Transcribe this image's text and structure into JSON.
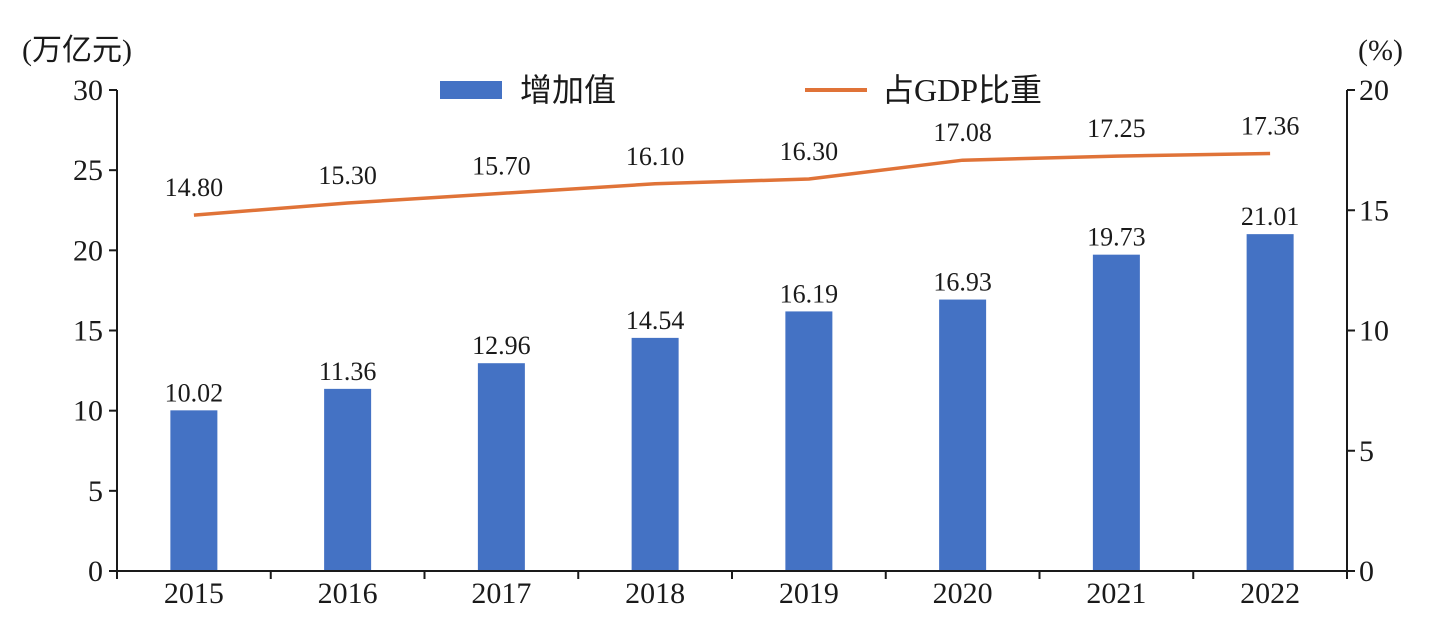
{
  "chart_data": {
    "type": "bar+line",
    "categories": [
      "2015",
      "2016",
      "2017",
      "2018",
      "2019",
      "2020",
      "2021",
      "2022"
    ],
    "series": [
      {
        "name": "增加值",
        "type": "bar",
        "axis": "left",
        "color": "#4472C4",
        "values": [
          10.02,
          11.36,
          12.96,
          14.54,
          16.19,
          16.93,
          19.73,
          21.01
        ],
        "labels": [
          "10.02",
          "11.36",
          "12.96",
          "14.54",
          "16.19",
          "16.93",
          "19.73",
          "21.01"
        ]
      },
      {
        "name": "占GDP比重",
        "type": "line",
        "axis": "right",
        "color": "#E07338",
        "values": [
          14.8,
          15.3,
          15.7,
          16.1,
          16.3,
          17.08,
          17.25,
          17.36
        ],
        "labels": [
          "14.80",
          "15.30",
          "15.70",
          "16.10",
          "16.30",
          "17.08",
          "17.25",
          "17.36"
        ]
      }
    ],
    "left_axis": {
      "unit": "(万亿元)",
      "ylim": [
        0,
        30
      ],
      "ticks": [
        "0",
        "5",
        "10",
        "15",
        "20",
        "25",
        "30"
      ]
    },
    "right_axis": {
      "unit": "(%)",
      "ylim": [
        0,
        20
      ],
      "ticks": [
        "0",
        "5",
        "10",
        "15",
        "20"
      ]
    },
    "legend": {
      "position": "top-center",
      "items": [
        "增加值",
        "占GDP比重"
      ]
    },
    "grid": false,
    "title": ""
  }
}
